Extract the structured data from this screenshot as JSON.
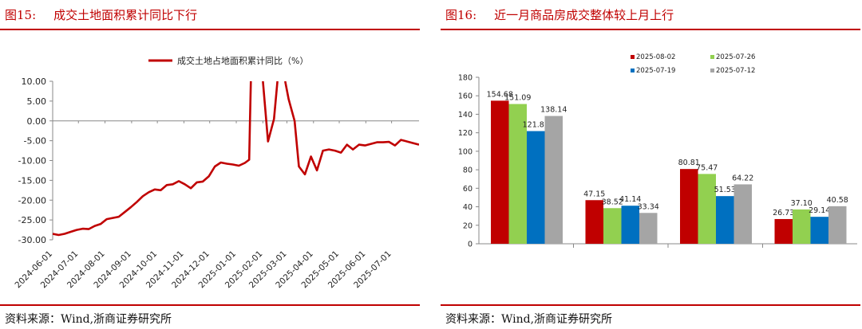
{
  "left": {
    "figure_num": "图15:",
    "title": "成交土地面积累计同比下行",
    "source": "资料来源：Wind,浙商证券研究所",
    "chart_data": {
      "type": "line",
      "legend": "成交土地占地面积累计同比（%）",
      "legend_position": "top-center",
      "series_color": "#c00000",
      "ylim": [
        -30,
        10
      ],
      "yticks": [
        "10.00",
        "5.00",
        "0.00",
        "-5.00",
        "-10.00",
        "-15.00",
        "-20.00",
        "-25.00",
        "-30.00"
      ],
      "xticks": [
        "2024-06-01",
        "2024-07-01",
        "2024-08-01",
        "2024-09-01",
        "2024-10-01",
        "2024-11-01",
        "2024-12-01",
        "2025-01-01",
        "2025-02-01",
        "2025-03-01",
        "2025-04-01",
        "2025-05-01",
        "2025-06-01",
        "2025-07-01"
      ],
      "x_range": [
        "2024-06-01",
        "2025-08-02"
      ],
      "points": [
        [
          "2024-06-01",
          -28.5
        ],
        [
          "2024-06-08",
          -28.8
        ],
        [
          "2024-06-15",
          -28.5
        ],
        [
          "2024-06-22",
          -28.0
        ],
        [
          "2024-06-29",
          -27.5
        ],
        [
          "2024-07-06",
          -27.2
        ],
        [
          "2024-07-13",
          -27.3
        ],
        [
          "2024-07-20",
          -26.5
        ],
        [
          "2024-07-27",
          -26.0
        ],
        [
          "2024-08-03",
          -24.8
        ],
        [
          "2024-08-10",
          -24.5
        ],
        [
          "2024-08-17",
          -24.2
        ],
        [
          "2024-08-24",
          -23.0
        ],
        [
          "2024-08-31",
          -21.8
        ],
        [
          "2024-09-07",
          -20.5
        ],
        [
          "2024-09-14",
          -19.0
        ],
        [
          "2024-09-21",
          -18.0
        ],
        [
          "2024-09-28",
          -17.3
        ],
        [
          "2024-10-05",
          -17.5
        ],
        [
          "2024-10-12",
          -16.2
        ],
        [
          "2024-10-19",
          -16.0
        ],
        [
          "2024-10-26",
          -15.2
        ],
        [
          "2024-11-02",
          -16.0
        ],
        [
          "2024-11-09",
          -17.0
        ],
        [
          "2024-11-16",
          -15.5
        ],
        [
          "2024-11-23",
          -15.3
        ],
        [
          "2024-11-30",
          -14.0
        ],
        [
          "2024-12-07",
          -11.5
        ],
        [
          "2024-12-14",
          -10.5
        ],
        [
          "2024-12-21",
          -10.8
        ],
        [
          "2024-12-28",
          -11.0
        ],
        [
          "2025-01-04",
          -11.3
        ],
        [
          "2025-01-11",
          -10.6
        ],
        [
          "2025-01-16",
          -9.8
        ],
        [
          "2025-01-17",
          0.0
        ],
        [
          "2025-01-18",
          10.0
        ]
      ],
      "points_2": [
        [
          "2025-02-01",
          10.0
        ],
        [
          "2025-02-07",
          -5.2
        ],
        [
          "2025-02-14",
          0.5
        ],
        [
          "2025-02-18",
          10.0
        ]
      ],
      "points_3": [
        [
          "2025-02-27",
          10.0
        ],
        [
          "2025-03-03",
          5.5
        ],
        [
          "2025-03-10",
          0.0
        ],
        [
          "2025-03-15",
          -11.5
        ],
        [
          "2025-03-22",
          -13.5
        ],
        [
          "2025-03-29",
          -9.0
        ],
        [
          "2025-04-05",
          -12.5
        ],
        [
          "2025-04-12",
          -7.5
        ],
        [
          "2025-04-19",
          -7.2
        ],
        [
          "2025-04-26",
          -7.5
        ],
        [
          "2025-05-03",
          -8.0
        ],
        [
          "2025-05-10",
          -6.0
        ],
        [
          "2025-05-17",
          -7.2
        ],
        [
          "2025-05-24",
          -6.0
        ],
        [
          "2025-05-31",
          -6.2
        ],
        [
          "2025-06-07",
          -5.8
        ],
        [
          "2025-06-14",
          -5.4
        ],
        [
          "2025-06-21",
          -5.4
        ],
        [
          "2025-06-28",
          -5.3
        ],
        [
          "2025-07-05",
          -6.2
        ],
        [
          "2025-07-12",
          -4.8
        ],
        [
          "2025-07-19",
          -5.2
        ],
        [
          "2025-07-26",
          -5.6
        ],
        [
          "2025-08-02",
          -6.0
        ]
      ]
    }
  },
  "right": {
    "figure_num": "图16:",
    "title": "近一月商品房成交整体较上月上行",
    "source": "资料来源：Wind,浙商证券研究所",
    "chart_data": {
      "type": "bar",
      "ylim": [
        0,
        180
      ],
      "yticks": [
        "180",
        "160",
        "140",
        "120",
        "100",
        "80",
        "60",
        "40",
        "20",
        "0"
      ],
      "legend_position": "top-center",
      "categories": [
        "",
        "",
        "",
        ""
      ],
      "series": [
        {
          "name": "2025-08-02",
          "color": "#c00000",
          "values": [
            154.68,
            47.15,
            80.81,
            26.73
          ]
        },
        {
          "name": "2025-07-26",
          "color": "#92d050",
          "values": [
            151.09,
            38.52,
            75.47,
            37.1
          ]
        },
        {
          "name": "2025-07-19",
          "color": "#0070c0",
          "values": [
            121.81,
            41.14,
            51.53,
            29.14
          ]
        },
        {
          "name": "2025-07-12",
          "color": "#a5a5a5",
          "values": [
            138.14,
            33.34,
            64.22,
            40.58
          ]
        }
      ]
    }
  }
}
